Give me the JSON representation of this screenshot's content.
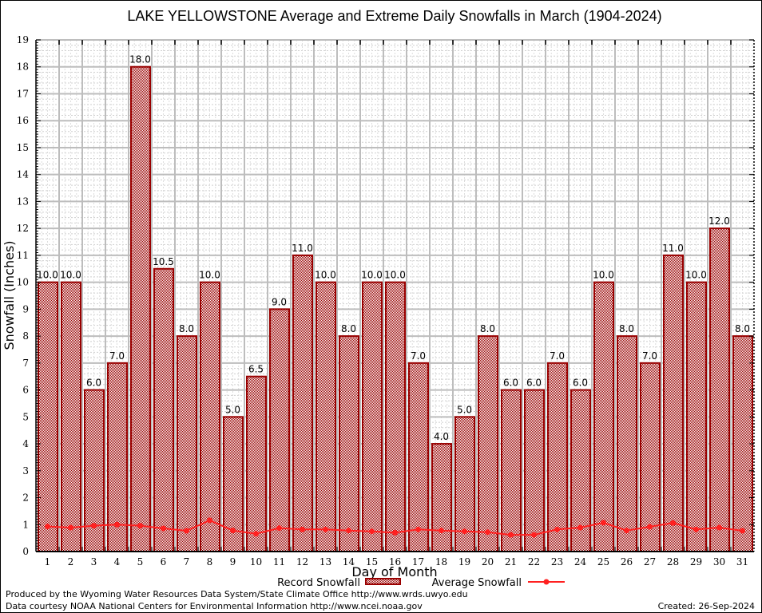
{
  "chart_data": {
    "type": "bar",
    "title": "LAKE YELLOWSTONE Average and Extreme Daily Snowfalls in March (1904-2024)",
    "xlabel": "Day of Month",
    "ylabel": "Snowfall (Inches)",
    "ylim": [
      0,
      19
    ],
    "yticks": [
      "0",
      "1",
      "2",
      "3",
      "4",
      "5",
      "6",
      "7",
      "8",
      "9",
      "10",
      "11",
      "12",
      "13",
      "14",
      "15",
      "16",
      "17",
      "18",
      "19"
    ],
    "grid": true,
    "categories": [
      "1",
      "2",
      "3",
      "4",
      "5",
      "6",
      "7",
      "8",
      "9",
      "10",
      "11",
      "12",
      "13",
      "14",
      "15",
      "16",
      "17",
      "18",
      "19",
      "20",
      "21",
      "22",
      "23",
      "24",
      "25",
      "26",
      "27",
      "28",
      "29",
      "30",
      "31"
    ],
    "series": [
      {
        "name": "Record Snowfall",
        "type": "bar",
        "color": "#990000",
        "values": [
          10.0,
          10.0,
          6.0,
          7.0,
          18.0,
          10.5,
          8.0,
          10.0,
          5.0,
          6.5,
          9.0,
          11.0,
          10.0,
          8.0,
          10.0,
          10.0,
          7.0,
          4.0,
          5.0,
          8.0,
          6.0,
          6.0,
          7.0,
          6.0,
          10.0,
          8.0,
          7.0,
          11.0,
          10.0,
          12.0,
          8.0
        ],
        "labels": [
          "10.0",
          "10.0",
          "6.0",
          "7.0",
          "18.0",
          "10.5",
          "8.0",
          "10.0",
          "5.0",
          "6.5",
          "9.0",
          "11.0",
          "10.0",
          "8.0",
          "10.0",
          "10.0",
          "7.0",
          "4.0",
          "5.0",
          "8.0",
          "6.0",
          "6.0",
          "7.0",
          "6.0",
          "10.0",
          "8.0",
          "7.0",
          "11.0",
          "10.0",
          "12.0",
          "8.0"
        ]
      },
      {
        "name": "Average Snowfall",
        "type": "line",
        "color": "#ff2020",
        "values": [
          0.93,
          0.89,
          0.96,
          1.0,
          0.96,
          0.86,
          0.77,
          1.16,
          0.78,
          0.66,
          0.87,
          0.82,
          0.82,
          0.78,
          0.75,
          0.7,
          0.82,
          0.78,
          0.75,
          0.72,
          0.62,
          0.62,
          0.82,
          0.89,
          1.07,
          0.78,
          0.92,
          1.06,
          0.82,
          0.89,
          0.77
        ]
      }
    ],
    "legend": {
      "placement": "bottom-center",
      "record_label": "Record Snowfall",
      "average_label": "Average Snowfall"
    }
  },
  "footer": {
    "line1": "Produced by the Wyoming Water Resources Data System/State Climate Office http://www.wrds.uwyo.edu",
    "line2": "Data courtesy NOAA National Centers for Environmental Information http://www.ncei.noaa.gov",
    "created": "Created: 26-Sep-2024"
  }
}
